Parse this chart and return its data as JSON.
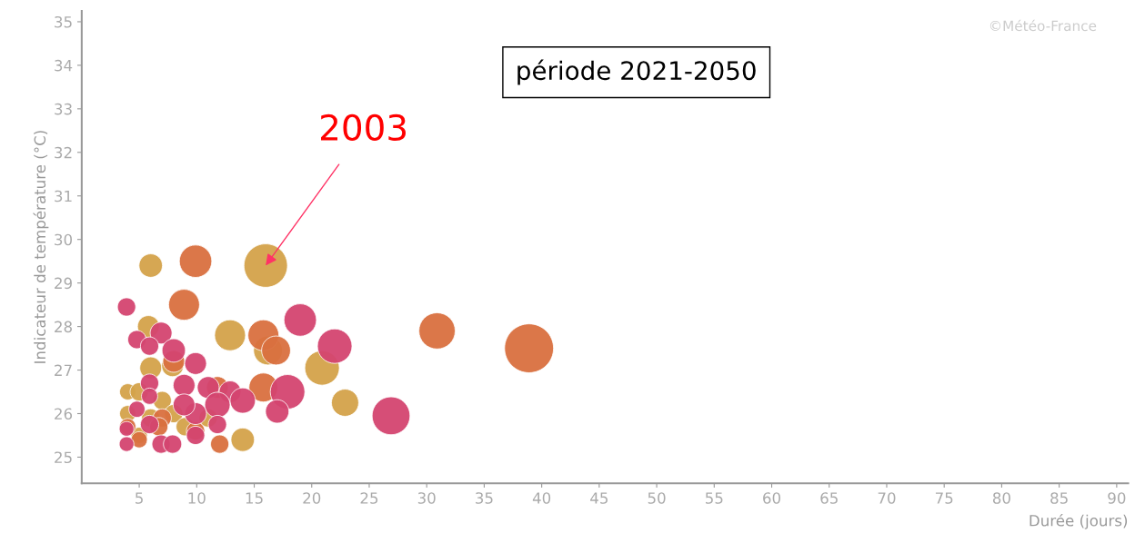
{
  "chart_data": {
    "type": "bubble",
    "xlabel": "Durée (jours)",
    "ylabel": "Indicateur de température (°C)",
    "xlim": [
      0,
      91
    ],
    "ylim": [
      24.4,
      35.25
    ],
    "xticks": [
      5,
      10,
      15,
      20,
      25,
      30,
      35,
      40,
      45,
      50,
      55,
      60,
      65,
      70,
      75,
      80,
      85,
      90
    ],
    "yticks": [
      25,
      26,
      27,
      28,
      29,
      30,
      31,
      32,
      33,
      34,
      35
    ],
    "grid": false,
    "legend": false,
    "annotations": [
      "période 2021-2050",
      "©Météo-France",
      {
        "text": "2003",
        "x": 16,
        "y": 29.4
      }
    ],
    "series": [
      {
        "color": "#d4a24a",
        "x": [
          6,
          16,
          12.9,
          16.2,
          20.9,
          22.9,
          14,
          5.8,
          6,
          7.9,
          4,
          5,
          7,
          8,
          4,
          6,
          9,
          11,
          5
        ],
        "values": [
          29.4,
          29.4,
          27.8,
          27.45,
          27.05,
          26.25,
          25.4,
          28,
          27.05,
          27.1,
          26.5,
          26.5,
          26.3,
          26.0,
          26.0,
          25.9,
          25.7,
          25.9,
          25.5
        ],
        "sizes": [
          0.23,
          0.79,
          0.4,
          0.35,
          0.5,
          0.31,
          0.23,
          0.2,
          0.2,
          0.2,
          0.11,
          0.14,
          0.14,
          0.14,
          0.11,
          0.14,
          0.14,
          0.14,
          0.11
        ]
      },
      {
        "color": "#d9703f",
        "x": [
          9.9,
          8.9,
          30.9,
          38.9,
          15.8,
          16.9,
          15.8,
          8,
          11.8,
          7,
          4,
          9.9,
          12,
          6.7,
          5
        ],
        "values": [
          29.5,
          28.5,
          27.9,
          27.5,
          27.8,
          27.45,
          26.6,
          27.2,
          26.6,
          25.9,
          25.7,
          25.6,
          25.3,
          25.7,
          25.4
        ],
        "sizes": [
          0.44,
          0.4,
          0.55,
          1,
          0.4,
          0.35,
          0.35,
          0.2,
          0.2,
          0.14,
          0.11,
          0.14,
          0.14,
          0.14,
          0.11
        ]
      },
      {
        "color": "#d44570",
        "x": [
          3.9,
          19,
          22,
          26.9,
          17.9,
          17,
          4.8,
          6.9,
          5.9,
          8,
          9.9,
          5.9,
          8.9,
          11,
          12.9,
          14,
          11.8,
          9.9,
          8.9,
          4.8,
          5.9,
          11.8,
          9.9,
          3.9,
          3.9,
          6.9,
          7.9,
          5.9
        ],
        "values": [
          28.45,
          28.15,
          27.55,
          25.95,
          26.5,
          26.05,
          27.7,
          27.85,
          27.55,
          27.45,
          27.15,
          26.7,
          26.65,
          26.6,
          26.5,
          26.3,
          26.2,
          26.0,
          26.2,
          26.1,
          25.75,
          25.75,
          25.5,
          25.65,
          25.3,
          25.3,
          25.3,
          26.4
        ],
        "sizes": [
          0.14,
          0.44,
          0.5,
          0.6,
          0.5,
          0.23,
          0.14,
          0.2,
          0.14,
          0.23,
          0.2,
          0.14,
          0.2,
          0.2,
          0.2,
          0.27,
          0.27,
          0.2,
          0.2,
          0.11,
          0.14,
          0.14,
          0.14,
          0.09,
          0.09,
          0.14,
          0.14,
          0.11
        ]
      }
    ]
  }
}
